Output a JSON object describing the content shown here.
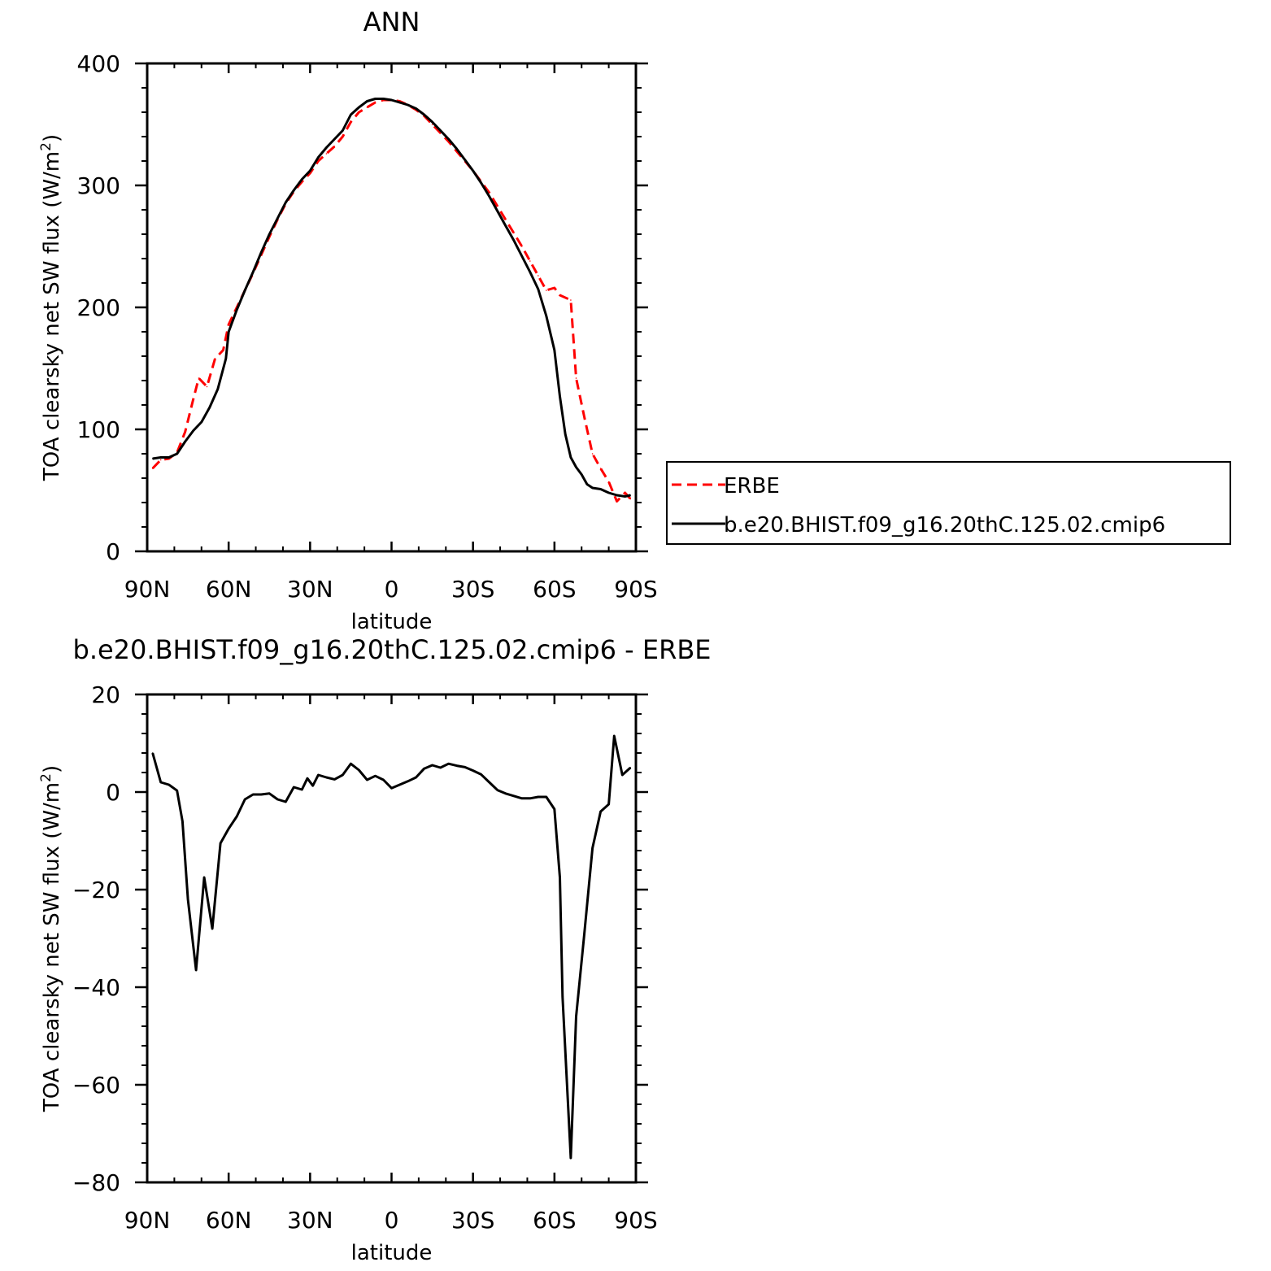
{
  "chart_data": [
    {
      "type": "line",
      "title": "ANN",
      "xlabel": "latitude",
      "ylabel_prefix": "TOA clearsky net SW flux (W/m",
      "ylabel_sup": "2",
      "ylabel_suffix": ")",
      "xlim": [
        90,
        -90
      ],
      "ylim": [
        0,
        400
      ],
      "x_ticks": [
        90,
        60,
        30,
        0,
        -30,
        -60,
        -90
      ],
      "x_tick_labels": [
        "90N",
        "60N",
        "30N",
        "0",
        "30S",
        "60S",
        "90S"
      ],
      "y_ticks": [
        0,
        100,
        200,
        300,
        400
      ],
      "y_tick_labels": [
        "0",
        "100",
        "200",
        "300",
        "400"
      ],
      "legend_position": "right",
      "series": [
        {
          "name": "ERBE",
          "color": "#ff0000",
          "style": "dashed",
          "x": [
            88,
            85,
            82,
            79,
            76,
            73,
            71,
            68,
            65,
            62,
            60,
            57,
            54,
            51,
            48,
            45,
            42,
            39,
            36,
            33,
            30,
            27,
            24,
            21,
            18,
            15,
            12,
            9,
            6,
            3,
            0,
            -3,
            -6,
            -9,
            -12,
            -15,
            -18,
            -21,
            -24,
            -27,
            -30,
            -33,
            -36,
            -39,
            -42,
            -45,
            -48,
            -51,
            -54,
            -57,
            -60,
            -62,
            -66,
            -68,
            -71,
            -74,
            -77,
            -80,
            -83,
            -86,
            -88
          ],
          "y": [
            68,
            75,
            76,
            81,
            98,
            125,
            142,
            135,
            158,
            165,
            186,
            200,
            214,
            228,
            243,
            258,
            272,
            285,
            295,
            303,
            310,
            320,
            326,
            332,
            340,
            352,
            360,
            364,
            368,
            370,
            370,
            369,
            366,
            362,
            357,
            350,
            343,
            336,
            328,
            320,
            312,
            303,
            294,
            283,
            272,
            261,
            250,
            238,
            226,
            214,
            216,
            210,
            206,
            142,
            110,
            80,
            68,
            57,
            41,
            48,
            43
          ]
        },
        {
          "name": "b.e20.BHIST.f09_g16.20thC.125.02.cmip6",
          "color": "#000000",
          "style": "solid",
          "x": [
            88,
            85,
            82,
            79,
            76,
            73,
            70,
            67,
            64,
            61,
            60,
            57,
            54,
            51,
            48,
            45,
            42,
            39,
            36,
            33,
            30,
            27,
            24,
            21,
            18,
            15,
            12,
            9,
            6,
            3,
            0,
            -3,
            -6,
            -9,
            -12,
            -15,
            -18,
            -21,
            -24,
            -27,
            -30,
            -33,
            -36,
            -39,
            -42,
            -45,
            -48,
            -51,
            -54,
            -57,
            -60,
            -62,
            -64,
            -66,
            -68,
            -70,
            -72,
            -74,
            -77,
            -80,
            -83,
            -86,
            -88
          ],
          "y": [
            76,
            77,
            77,
            80,
            90,
            99,
            106,
            118,
            133,
            158,
            180,
            198,
            214,
            229,
            245,
            260,
            273,
            286,
            296,
            305,
            312,
            323,
            331,
            338,
            345,
            358,
            364,
            369,
            371,
            371,
            370,
            368,
            366,
            363,
            358,
            352,
            345,
            338,
            330,
            321,
            312,
            302,
            291,
            279,
            267,
            255,
            242,
            229,
            215,
            193,
            165,
            127,
            96,
            77,
            69,
            63,
            55,
            52,
            51,
            48,
            46,
            45,
            46
          ]
        }
      ]
    },
    {
      "type": "line",
      "title": "b.e20.BHIST.f09_g16.20thC.125.02.cmip6 - ERBE",
      "xlabel": "latitude",
      "ylabel_prefix": "TOA clearsky net SW flux (W/m",
      "ylabel_sup": "2",
      "ylabel_suffix": ")",
      "xlim": [
        90,
        -90
      ],
      "ylim": [
        -80,
        20
      ],
      "x_ticks": [
        90,
        60,
        30,
        0,
        -30,
        -60,
        -90
      ],
      "x_tick_labels": [
        "90N",
        "60N",
        "30N",
        "0",
        "30S",
        "60S",
        "90S"
      ],
      "y_ticks": [
        -80,
        -60,
        -40,
        -20,
        0,
        20
      ],
      "y_tick_labels": [
        "-80",
        "-60",
        "-40",
        "-20",
        "0",
        "20"
      ],
      "series": [
        {
          "color": "#000000",
          "style": "solid",
          "x": [
            88,
            85,
            82,
            79,
            77,
            75,
            72,
            69,
            66,
            63,
            60,
            57,
            54,
            51,
            48,
            45,
            42,
            39,
            36,
            33,
            31,
            29,
            27,
            24,
            21,
            18,
            15,
            12,
            9,
            6,
            3,
            0,
            -3,
            -6,
            -9,
            -12,
            -15,
            -18,
            -21,
            -24,
            -27,
            -30,
            -33,
            -36,
            -39,
            -42,
            -45,
            -48,
            -51,
            -54,
            -57,
            -60,
            -62,
            -63,
            -66,
            -68,
            -71,
            -74,
            -77,
            -80,
            -82,
            -85,
            -88
          ],
          "y": [
            8,
            2,
            1.5,
            0.3,
            -6,
            -22,
            -36.5,
            -17.5,
            -28,
            -10.5,
            -7.5,
            -5,
            -1.5,
            -0.5,
            -0.5,
            -0.3,
            -1.5,
            -2,
            1,
            0.5,
            2.8,
            1.3,
            3.5,
            3,
            2.6,
            3.5,
            5.8,
            4.5,
            2.5,
            3.3,
            2.5,
            0.8,
            1.5,
            2.2,
            3,
            4.8,
            5.5,
            5,
            5.8,
            5.4,
            5.1,
            4.4,
            3.6,
            2,
            0.4,
            -0.3,
            -0.8,
            -1.3,
            -1.3,
            -1,
            -1,
            -3.5,
            -17.5,
            -42,
            -75,
            -46,
            -29,
            -11.5,
            -4,
            -2.5,
            11.5,
            3.5,
            5
          ]
        }
      ]
    }
  ]
}
